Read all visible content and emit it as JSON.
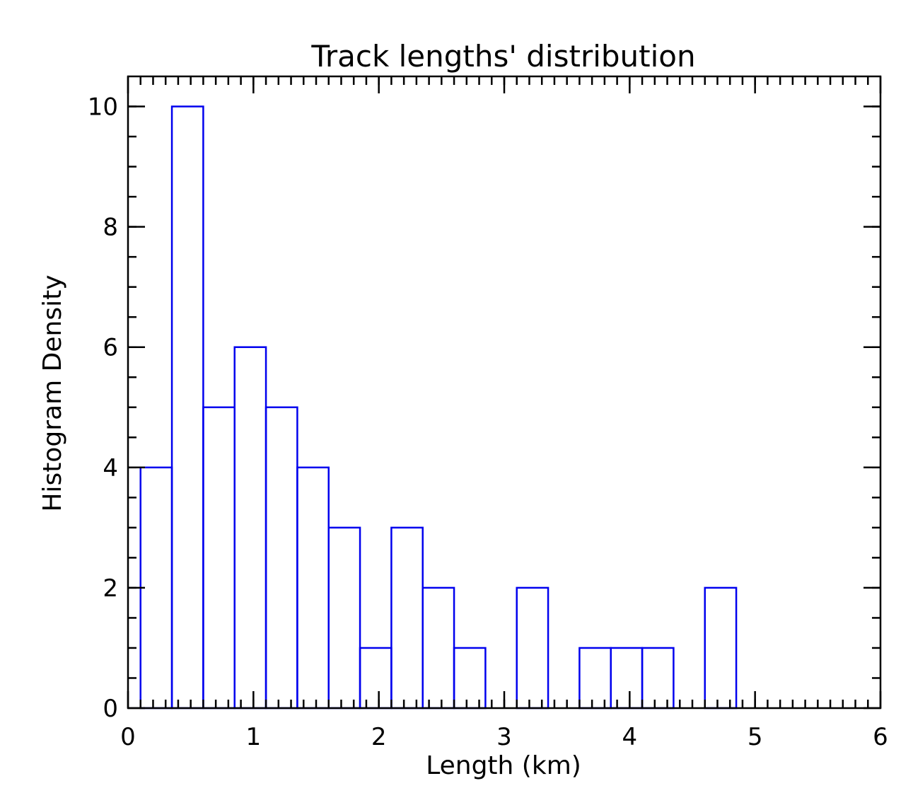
{
  "chart_data": {
    "type": "bar",
    "title": "Track lengths' distribution",
    "xlabel": "Length (km)",
    "ylabel": "Histogram Density",
    "xlim": [
      0,
      6
    ],
    "ylim": [
      0,
      10.5
    ],
    "x_ticks": [
      0,
      1,
      2,
      3,
      4,
      5,
      6
    ],
    "y_ticks": [
      0,
      2,
      4,
      6,
      8,
      10
    ],
    "x_minor_step": 0.1,
    "y_minor_step": 0.5,
    "grid": false,
    "style": "step-outline",
    "bar_color": "#0000ee",
    "bins": [
      {
        "x0": 0.1,
        "x1": 0.35,
        "value": 4
      },
      {
        "x0": 0.35,
        "x1": 0.6,
        "value": 10
      },
      {
        "x0": 0.6,
        "x1": 0.85,
        "value": 5
      },
      {
        "x0": 0.85,
        "x1": 1.1,
        "value": 6
      },
      {
        "x0": 1.1,
        "x1": 1.35,
        "value": 5
      },
      {
        "x0": 1.35,
        "x1": 1.6,
        "value": 4
      },
      {
        "x0": 1.6,
        "x1": 1.85,
        "value": 3
      },
      {
        "x0": 1.85,
        "x1": 2.1,
        "value": 1
      },
      {
        "x0": 2.1,
        "x1": 2.35,
        "value": 3
      },
      {
        "x0": 2.35,
        "x1": 2.6,
        "value": 2
      },
      {
        "x0": 2.6,
        "x1": 2.85,
        "value": 1
      },
      {
        "x0": 2.85,
        "x1": 3.1,
        "value": 0
      },
      {
        "x0": 3.1,
        "x1": 3.35,
        "value": 2
      },
      {
        "x0": 3.35,
        "x1": 3.6,
        "value": 0
      },
      {
        "x0": 3.6,
        "x1": 3.85,
        "value": 1
      },
      {
        "x0": 3.85,
        "x1": 4.1,
        "value": 1
      },
      {
        "x0": 4.1,
        "x1": 4.35,
        "value": 1
      },
      {
        "x0": 4.35,
        "x1": 4.6,
        "value": 0
      },
      {
        "x0": 4.6,
        "x1": 4.85,
        "value": 2
      }
    ]
  }
}
